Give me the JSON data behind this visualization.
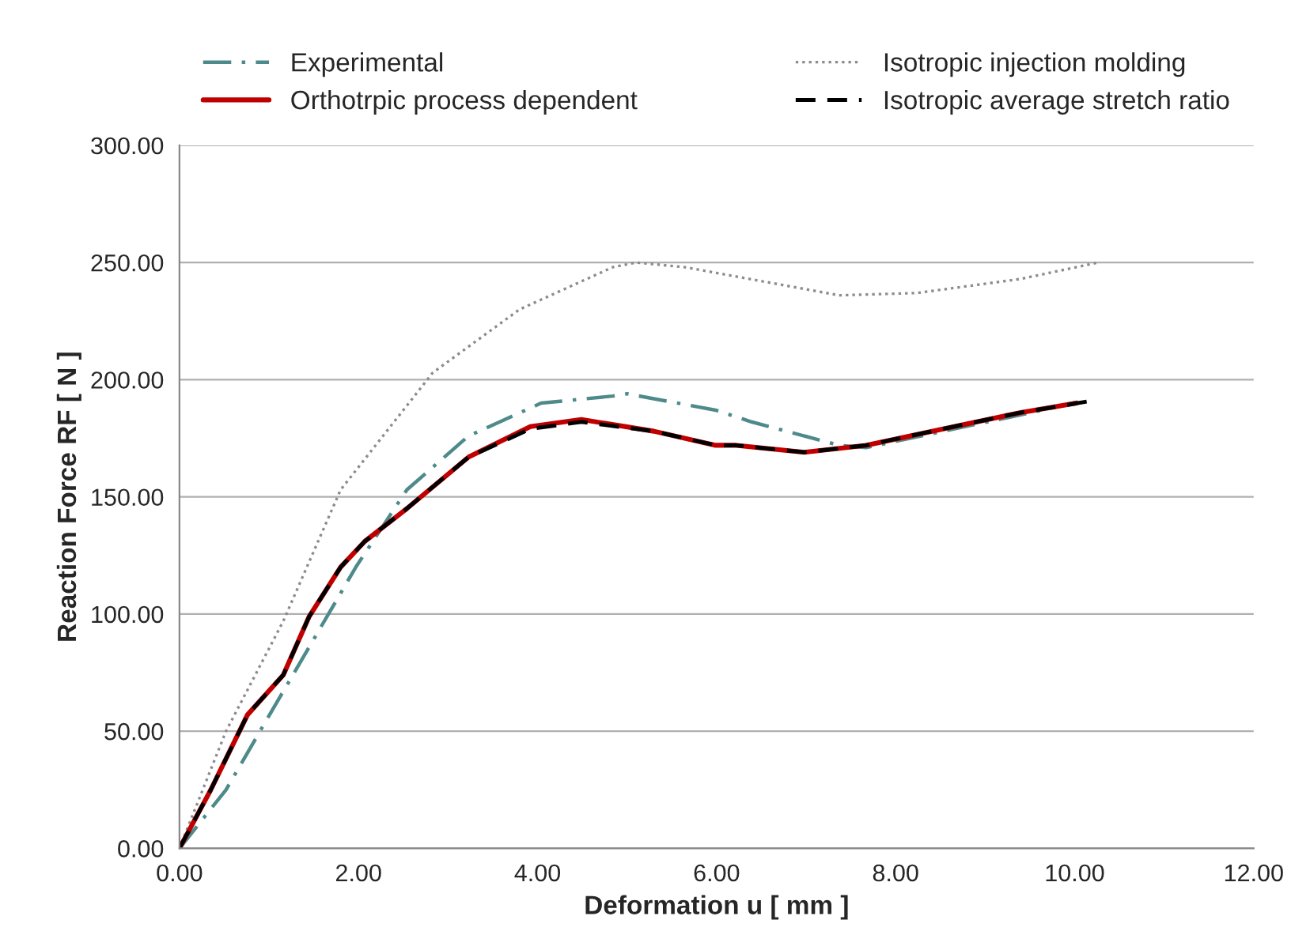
{
  "chart_data": {
    "type": "line",
    "xlabel": "Deformation u [ mm ]",
    "ylabel": "Reaction Force RF [ N ]",
    "xlim": [
      0,
      12
    ],
    "ylim": [
      0,
      300
    ],
    "xticks": [
      {
        "value": 0,
        "label": "0.00"
      },
      {
        "value": 2,
        "label": "2.00"
      },
      {
        "value": 4,
        "label": "4.00"
      },
      {
        "value": 6,
        "label": "6.00"
      },
      {
        "value": 8,
        "label": "8.00"
      },
      {
        "value": 10,
        "label": "10.00"
      },
      {
        "value": 12,
        "label": "12.00"
      }
    ],
    "yticks": [
      {
        "value": 0,
        "label": "0.00"
      },
      {
        "value": 50,
        "label": "50.00"
      },
      {
        "value": 100,
        "label": "100.00"
      },
      {
        "value": 150,
        "label": "150.00"
      },
      {
        "value": 200,
        "label": "200.00"
      },
      {
        "value": 250,
        "label": "250.00"
      },
      {
        "value": 300,
        "label": "300.00"
      }
    ],
    "grid": "y",
    "legend": "top",
    "marker": "none",
    "series": [
      {
        "name": "Experimental",
        "color": "#4f8a8b",
        "line_style": "dashdot",
        "x": [
          0,
          0.52,
          0.93,
          1.68,
          1.97,
          2.54,
          3.23,
          4.04,
          4.84,
          5.0,
          5.99,
          6.39,
          7.37,
          7.67,
          8.53,
          9.4,
          10.1
        ],
        "values": [
          0,
          25,
          52,
          101,
          120,
          153,
          176,
          190,
          193,
          194,
          187,
          182,
          172,
          171,
          178,
          185,
          191
        ]
      },
      {
        "name": "Isotropic injection molding",
        "color": "#8c8c8c",
        "line_style": "dotted",
        "x": [
          0,
          0.52,
          1.16,
          1.8,
          2.83,
          3.8,
          4.84,
          5.1,
          5.65,
          7.37,
          8.24,
          9.4,
          10.26
        ],
        "values": [
          0,
          50,
          97,
          153,
          203,
          230,
          248,
          250,
          248,
          236,
          237,
          243,
          250
        ]
      },
      {
        "name": "Orthotrpic process dependent",
        "color": "#c00000",
        "line_style": "solid",
        "x": [
          0,
          0.35,
          0.76,
          1.16,
          1.45,
          1.8,
          2.07,
          2.54,
          3.23,
          3.92,
          4.49,
          5.3,
          5.99,
          6.22,
          6.98,
          7.67,
          8.53,
          9.4,
          10.02
        ],
        "values": [
          0,
          25,
          57,
          74,
          99,
          120,
          131,
          145,
          167,
          180,
          183,
          178,
          172,
          172,
          169,
          172,
          179,
          186,
          190
        ]
      },
      {
        "name": "Isotropic average stretch ratio",
        "color": "#000000",
        "line_style": "dashed",
        "x": [
          0,
          0.35,
          0.76,
          1.16,
          1.45,
          1.8,
          2.07,
          2.54,
          3.23,
          3.92,
          4.49,
          5.3,
          5.99,
          6.22,
          6.98,
          7.67,
          8.53,
          9.4,
          10.19
        ],
        "values": [
          0,
          25,
          57,
          74,
          99,
          120,
          131,
          145,
          167,
          179,
          182,
          178,
          172,
          172,
          169,
          172,
          179,
          186,
          191
        ]
      }
    ]
  }
}
